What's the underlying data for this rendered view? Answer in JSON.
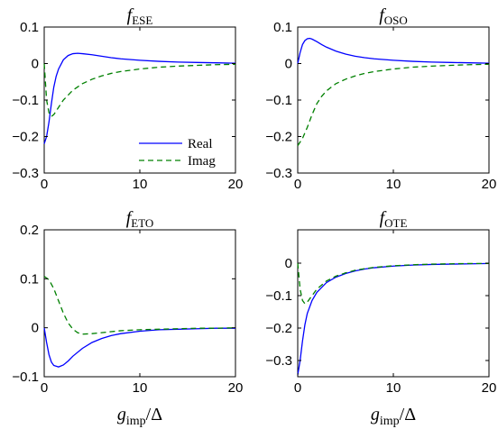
{
  "colors": {
    "real": "#0000ff",
    "imag": "#008000",
    "axes": "#000000"
  },
  "chart_data": [
    {
      "type": "line",
      "title": {
        "main": "f",
        "sub": "ESE"
      },
      "xlabel": {
        "main": "",
        "sub": "",
        "tail": ""
      },
      "xlim": [
        0,
        20
      ],
      "ylim": [
        -0.3,
        0.1
      ],
      "xticks": [
        0,
        10,
        20
      ],
      "xtick_labels": [
        "0",
        "10",
        "20"
      ],
      "yticks": [
        -0.3,
        -0.2,
        -0.1,
        0,
        0.1
      ],
      "ytick_labels": [
        "−0.3",
        "−0.2",
        "−0.1",
        "0",
        "0.1"
      ],
      "legend": {
        "position": "bottom-right",
        "entries": [
          "Real",
          "Imag"
        ]
      },
      "series": [
        {
          "name": "Real",
          "style": "solid",
          "x": [
            0,
            0.25,
            0.5,
            0.75,
            1,
            1.25,
            1.5,
            2,
            2.5,
            3,
            3.5,
            4,
            5,
            6,
            7,
            8,
            10,
            12,
            14,
            16,
            18,
            20
          ],
          "y": [
            -0.22,
            -0.2,
            -0.16,
            -0.11,
            -0.065,
            -0.035,
            -0.015,
            0.01,
            0.022,
            0.027,
            0.028,
            0.027,
            0.024,
            0.02,
            0.016,
            0.013,
            0.009,
            0.006,
            0.004,
            0.003,
            0.002,
            0.001
          ]
        },
        {
          "name": "Imag",
          "style": "dashed",
          "x": [
            0,
            0.25,
            0.5,
            0.75,
            1,
            1.5,
            2,
            3,
            4,
            5,
            6,
            7,
            8,
            10,
            12,
            14,
            16,
            18,
            20
          ],
          "y": [
            0,
            -0.1,
            -0.135,
            -0.145,
            -0.14,
            -0.12,
            -0.1,
            -0.073,
            -0.055,
            -0.043,
            -0.034,
            -0.027,
            -0.022,
            -0.015,
            -0.01,
            -0.007,
            -0.005,
            -0.003,
            -0.002
          ]
        }
      ]
    },
    {
      "type": "line",
      "title": {
        "main": "f",
        "sub": "OSO"
      },
      "xlabel": {
        "main": "",
        "sub": "",
        "tail": ""
      },
      "xlim": [
        0,
        20
      ],
      "ylim": [
        -0.3,
        0.1
      ],
      "xticks": [
        0,
        10,
        20
      ],
      "xtick_labels": [
        "0",
        "10",
        "20"
      ],
      "yticks": [
        -0.3,
        -0.2,
        -0.1,
        0,
        0.1
      ],
      "ytick_labels": [
        "−0.3",
        "−0.2",
        "−0.1",
        "0",
        "0.1"
      ],
      "series": [
        {
          "name": "Real",
          "style": "solid",
          "x": [
            0,
            0.25,
            0.5,
            0.75,
            1,
            1.25,
            1.5,
            2,
            2.5,
            3,
            4,
            5,
            6,
            7,
            8,
            10,
            12,
            14,
            16,
            18,
            20
          ],
          "y": [
            0,
            0.03,
            0.052,
            0.063,
            0.068,
            0.069,
            0.067,
            0.06,
            0.052,
            0.045,
            0.034,
            0.026,
            0.02,
            0.016,
            0.013,
            0.009,
            0.006,
            0.004,
            0.003,
            0.002,
            0.001
          ]
        },
        {
          "name": "Imag",
          "style": "dashed",
          "x": [
            0,
            0.5,
            1,
            1.5,
            2,
            2.5,
            3,
            4,
            5,
            6,
            7,
            8,
            10,
            12,
            14,
            16,
            18,
            20
          ],
          "y": [
            -0.225,
            -0.205,
            -0.175,
            -0.14,
            -0.11,
            -0.09,
            -0.075,
            -0.055,
            -0.043,
            -0.034,
            -0.027,
            -0.022,
            -0.015,
            -0.01,
            -0.007,
            -0.005,
            -0.003,
            -0.002
          ]
        }
      ]
    },
    {
      "type": "line",
      "title": {
        "main": "f",
        "sub": "ETO"
      },
      "xlabel": {
        "main": "g",
        "sub": "imp",
        "tail": "/Δ"
      },
      "xlim": [
        0,
        20
      ],
      "ylim": [
        -0.1,
        0.2
      ],
      "xticks": [
        0,
        10,
        20
      ],
      "xtick_labels": [
        "0",
        "10",
        "20"
      ],
      "yticks": [
        -0.1,
        0,
        0.1,
        0.2
      ],
      "ytick_labels": [
        "−0.1",
        "0",
        "0.1",
        "0.2"
      ],
      "series": [
        {
          "name": "Real",
          "style": "solid",
          "x": [
            0,
            0.25,
            0.5,
            0.75,
            1,
            1.5,
            2,
            2.5,
            3,
            4,
            5,
            6,
            7,
            8,
            10,
            12,
            14,
            16,
            18,
            20
          ],
          "y": [
            0,
            -0.03,
            -0.055,
            -0.07,
            -0.077,
            -0.08,
            -0.076,
            -0.068,
            -0.058,
            -0.042,
            -0.03,
            -0.022,
            -0.016,
            -0.012,
            -0.007,
            -0.004,
            -0.003,
            -0.002,
            -0.001,
            -0.001
          ]
        },
        {
          "name": "Imag",
          "style": "dashed",
          "x": [
            0,
            0.5,
            1,
            1.5,
            2,
            2.5,
            3,
            3.5,
            4,
            5,
            6,
            7,
            8,
            10,
            12,
            14,
            16,
            18,
            20
          ],
          "y": [
            0.105,
            0.098,
            0.08,
            0.055,
            0.03,
            0.01,
            -0.003,
            -0.01,
            -0.013,
            -0.012,
            -0.01,
            -0.008,
            -0.006,
            -0.004,
            -0.003,
            -0.002,
            -0.001,
            -0.001,
            0
          ]
        }
      ]
    },
    {
      "type": "line",
      "title": {
        "main": "f",
        "sub": "OTE"
      },
      "xlabel": {
        "main": "g",
        "sub": "imp",
        "tail": "/Δ"
      },
      "xlim": [
        0,
        20
      ],
      "ylim": [
        -0.35,
        0
      ],
      "xticks": [
        0,
        10,
        20
      ],
      "xtick_labels": [
        "0",
        "10",
        "20"
      ],
      "yticks": [
        -0.3,
        -0.2,
        -0.1,
        0
      ],
      "ytick_labels": [
        "−0.3",
        "−0.2",
        "−0.1",
        "0"
      ],
      "series": [
        {
          "name": "Real",
          "style": "solid",
          "x": [
            0,
            0.25,
            0.5,
            0.75,
            1,
            1.5,
            2,
            3,
            4,
            5,
            6,
            7,
            8,
            10,
            12,
            14,
            16,
            18,
            20
          ],
          "y": [
            -0.345,
            -0.3,
            -0.24,
            -0.19,
            -0.155,
            -0.115,
            -0.09,
            -0.06,
            -0.043,
            -0.032,
            -0.024,
            -0.018,
            -0.014,
            -0.009,
            -0.006,
            -0.004,
            -0.003,
            -0.002,
            -0.001
          ]
        },
        {
          "name": "Imag",
          "style": "dashed",
          "x": [
            0,
            0.25,
            0.5,
            0.75,
            1,
            1.5,
            2,
            3,
            4,
            5,
            6,
            7,
            8,
            10,
            12,
            14,
            16,
            18,
            20
          ],
          "y": [
            0,
            -0.08,
            -0.115,
            -0.125,
            -0.12,
            -0.1,
            -0.08,
            -0.055,
            -0.04,
            -0.03,
            -0.022,
            -0.017,
            -0.013,
            -0.008,
            -0.005,
            -0.003,
            -0.002,
            -0.001,
            -0.001
          ]
        }
      ]
    }
  ]
}
